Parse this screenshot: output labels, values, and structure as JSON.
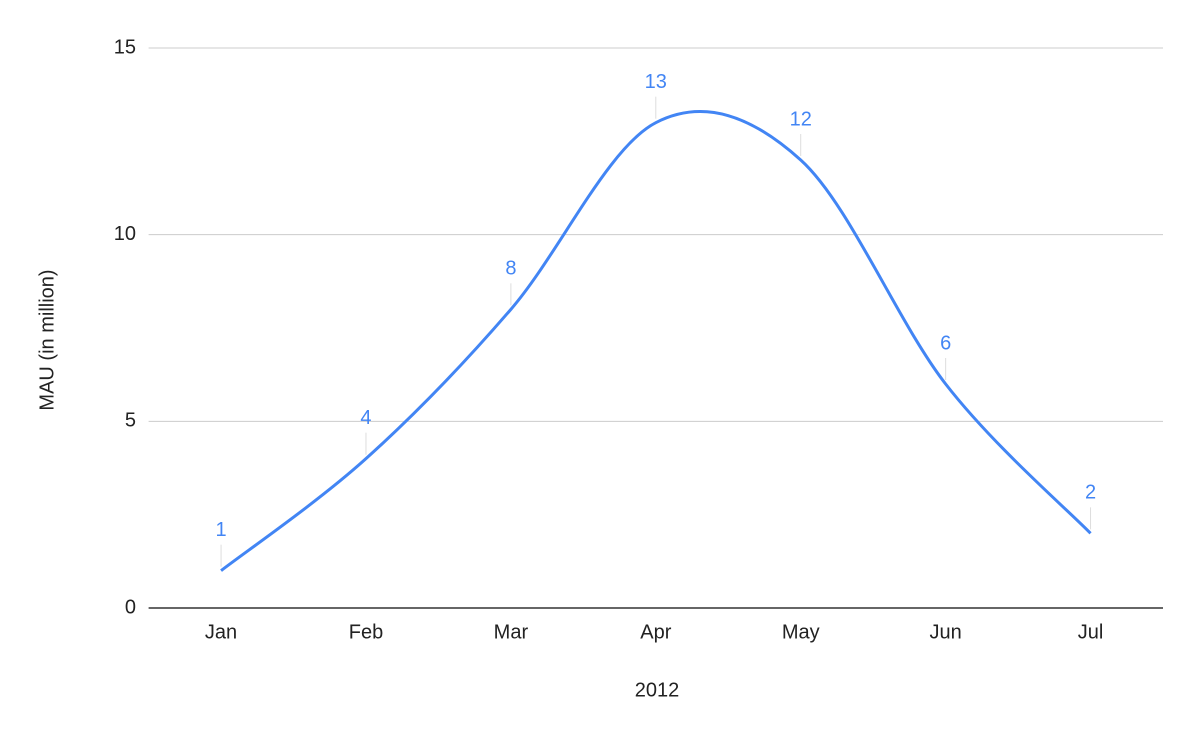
{
  "chart_data": {
    "type": "line",
    "x_label": "2012",
    "y_label": "MAU (in million)",
    "categories": [
      "Jan",
      "Feb",
      "Mar",
      "Apr",
      "May",
      "Jun",
      "Jul"
    ],
    "values": [
      1,
      4,
      8,
      13,
      12,
      6,
      2
    ],
    "color": "#4285f4",
    "smooth": true,
    "data_labels": true,
    "ylim": [
      0,
      15
    ],
    "yticks": [
      0,
      5,
      10,
      15
    ],
    "grid": true
  }
}
